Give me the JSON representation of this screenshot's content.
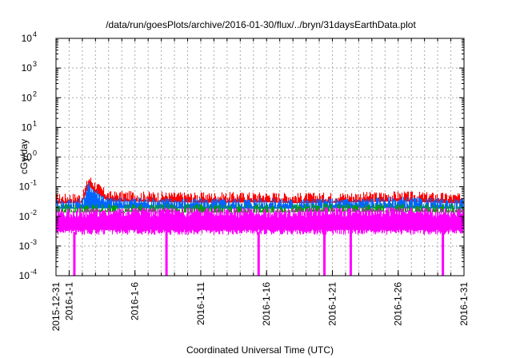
{
  "chart_data": {
    "type": "line",
    "title": "/data/run/goesPlots/archive/2016-01-30/flux/../bryn/31daysEarthData.plot",
    "xlabel": "Coordinated Universal Time (UTC)",
    "ylabel": "cGy/day",
    "x_scale": "time",
    "y_scale": "log",
    "xlim": [
      "2015-12-31",
      "2016-01-31"
    ],
    "ylim": [
      0.0001,
      10000
    ],
    "grid": true,
    "legend": "none",
    "x_ticks": [
      {
        "date": "2015-12-31",
        "label": "2015-12-31"
      },
      {
        "date": "2016-01-01",
        "label": "2016-1-1"
      },
      {
        "date": "2016-01-06",
        "label": "2016-1-6"
      },
      {
        "date": "2016-01-11",
        "label": "2016-1-11"
      },
      {
        "date": "2016-01-16",
        "label": "2016-1-16"
      },
      {
        "date": "2016-01-21",
        "label": "2016-1-21"
      },
      {
        "date": "2016-01-26",
        "label": "2016-1-26"
      },
      {
        "date": "2016-01-31",
        "label": "2016-1-31"
      }
    ],
    "y_ticks": [
      {
        "value": 0.0001,
        "base": "10",
        "exp": "-4"
      },
      {
        "value": 0.001,
        "base": "10",
        "exp": "-3"
      },
      {
        "value": 0.01,
        "base": "10",
        "exp": "-2"
      },
      {
        "value": 0.1,
        "base": "10",
        "exp": "-1"
      },
      {
        "value": 1,
        "base": "10",
        "exp": "0"
      },
      {
        "value": 10,
        "base": "10",
        "exp": "1"
      },
      {
        "value": 100,
        "base": "10",
        "exp": "2"
      },
      {
        "value": 1000,
        "base": "10",
        "exp": "3"
      },
      {
        "value": 10000,
        "base": "10",
        "exp": "4"
      }
    ],
    "series": [
      {
        "color": "#ff0000",
        "x": [
          "2015-12-31",
          "2016-01-02",
          "2016-01-02T12:00",
          "2016-01-03",
          "2016-01-04",
          "2016-01-06",
          "2016-01-11",
          "2016-01-16",
          "2016-01-18",
          "2016-01-21",
          "2016-01-24",
          "2016-01-26",
          "2016-01-29",
          "2016-01-31"
        ],
        "values": [
          0.045,
          0.048,
          0.2,
          0.12,
          0.055,
          0.055,
          0.05,
          0.052,
          0.048,
          0.05,
          0.052,
          0.055,
          0.05,
          0.045
        ]
      },
      {
        "color": "#0066ff",
        "x": [
          "2015-12-31",
          "2016-01-02",
          "2016-01-02T12:00",
          "2016-01-03",
          "2016-01-04",
          "2016-01-06",
          "2016-01-11",
          "2016-01-16",
          "2016-01-18",
          "2016-01-21",
          "2016-01-24",
          "2016-01-26",
          "2016-01-29",
          "2016-01-31"
        ],
        "values": [
          0.03,
          0.032,
          0.12,
          0.07,
          0.035,
          0.035,
          0.032,
          0.033,
          0.031,
          0.032,
          0.034,
          0.036,
          0.032,
          0.03
        ]
      },
      {
        "color": "#00a000",
        "x": [
          "2015-12-31",
          "2016-01-06",
          "2016-01-11",
          "2016-01-16",
          "2016-01-21",
          "2016-01-26",
          "2016-01-31"
        ],
        "values": [
          0.02,
          0.021,
          0.02,
          0.02,
          0.021,
          0.021,
          0.02
        ]
      },
      {
        "color": "#ff00ff",
        "x": [
          "2015-12-31",
          "2016-01-06",
          "2016-01-11",
          "2016-01-16",
          "2016-01-21",
          "2016-01-26",
          "2016-01-31"
        ],
        "values": [
          0.015,
          0.016,
          0.015,
          0.015,
          0.016,
          0.016,
          0.015
        ],
        "floor": 0.003,
        "dropouts": [
          "2016-01-01",
          "2016-01-08",
          "2016-01-15",
          "2016-01-20",
          "2016-01-22",
          "2016-01-29"
        ]
      }
    ]
  }
}
